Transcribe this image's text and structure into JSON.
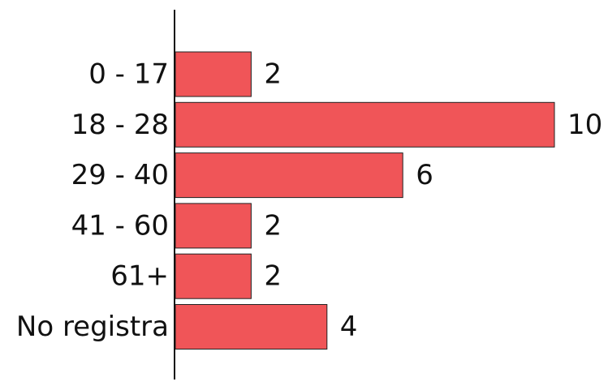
{
  "chart_data": {
    "type": "bar",
    "orientation": "horizontal",
    "categories": [
      "0 - 17",
      "18 - 28",
      "29 - 40",
      "41 - 60",
      "61+",
      "No registra"
    ],
    "values": [
      2,
      10,
      6,
      2,
      2,
      4
    ],
    "value_labels": [
      "2",
      "10",
      "6",
      "2",
      "2",
      "4"
    ],
    "title": "",
    "xlabel": "",
    "ylabel": "",
    "xlim": [
      0,
      10
    ],
    "grid": false,
    "legend": "none",
    "colors": {
      "bar_fill": "#f05558",
      "bar_stroke": "#222222",
      "axis": "#111111",
      "text": "#111111"
    }
  }
}
